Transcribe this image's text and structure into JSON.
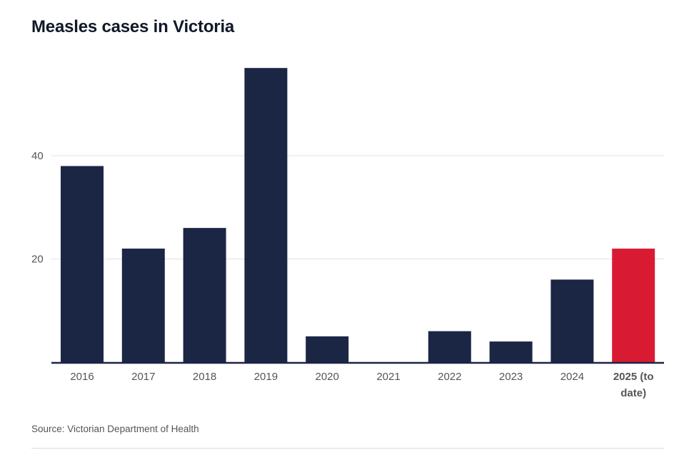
{
  "title": "Measles cases in Victoria",
  "source": "Source: Victorian Department of Health",
  "colors": {
    "bar": "#1b2645",
    "highlight": "#d81b32",
    "grid": "#e2e2e2",
    "axis": "#1b2645"
  },
  "chart_data": {
    "type": "bar",
    "title": "Measles cases in Victoria",
    "xlabel": "",
    "ylabel": "",
    "categories": [
      "2016",
      "2017",
      "2018",
      "2019",
      "2020",
      "2021",
      "2022",
      "2023",
      "2024",
      "2025 (to date)"
    ],
    "category_lines": [
      [
        "2016"
      ],
      [
        "2017"
      ],
      [
        "2018"
      ],
      [
        "2019"
      ],
      [
        "2020"
      ],
      [
        "2021"
      ],
      [
        "2022"
      ],
      [
        "2023"
      ],
      [
        "2024"
      ],
      [
        "2025 (to",
        "date)"
      ]
    ],
    "values": [
      38,
      22,
      26,
      57,
      5,
      0,
      6,
      4,
      16,
      22
    ],
    "highlight_index": 9,
    "yticks": [
      20,
      40
    ],
    "ylim": [
      0,
      60
    ],
    "grid": true,
    "legend": "none"
  }
}
